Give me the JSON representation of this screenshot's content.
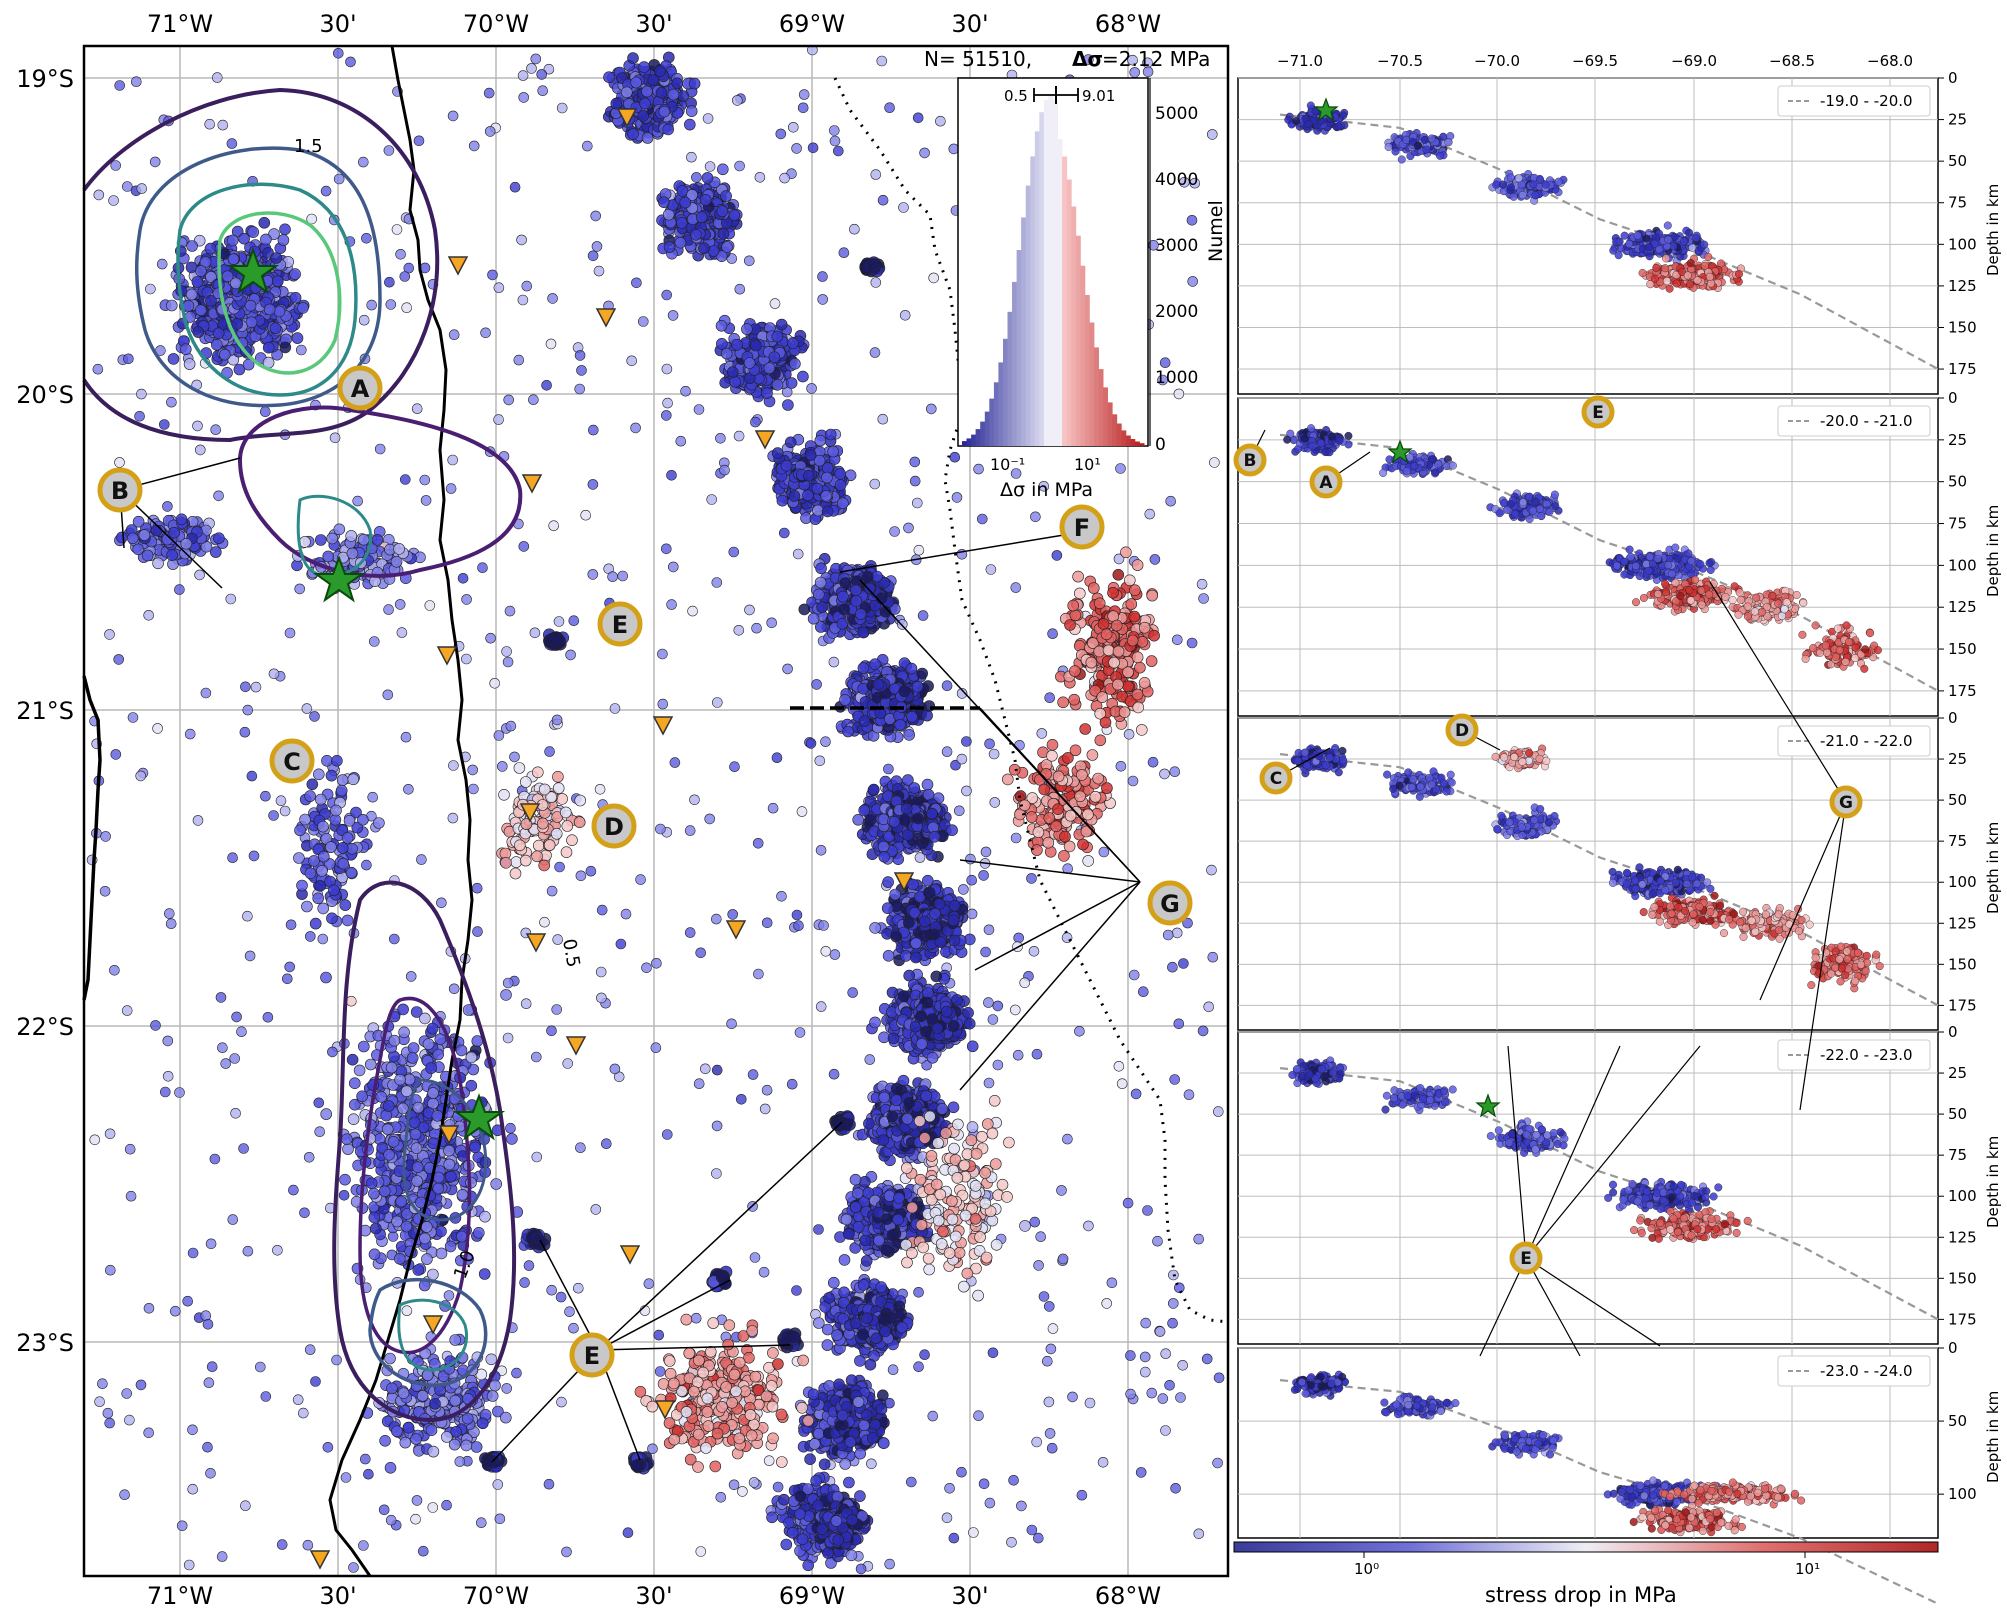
{
  "map": {
    "lon_ticks": [
      "71°W",
      "30'",
      "70°W",
      "30'",
      "69°W",
      "30'",
      "68°W"
    ],
    "lat_ticks": [
      "19°S",
      "20°S",
      "21°S",
      "22°S",
      "23°S"
    ],
    "stats_n": "N= 51510,",
    "stats_sigma": "Δσ",
    "stats_value": "=2.12 MPa",
    "contour_labels": [
      "1.5",
      "0.5",
      "1.0"
    ],
    "callouts": [
      "A",
      "B",
      "C",
      "D",
      "E",
      "F",
      "G",
      "E",
      "E"
    ]
  },
  "histogram": {
    "y_label": "Numel",
    "y_ticks": [
      "5000",
      "4000",
      "3000",
      "2000",
      "1000",
      "0"
    ],
    "x_ticks": [
      "10⁻¹",
      "10¹"
    ],
    "x_label": "Δσ in MPa",
    "range_low": "0.5",
    "range_high": "9.01"
  },
  "profiles": {
    "lon_ticks": [
      "−71.0",
      "−70.5",
      "−70.0",
      "−69.5",
      "−69.0",
      "−68.5",
      "−68.0"
    ],
    "y_label": "Depth in km",
    "panels": [
      {
        "legend": "-19.0 - -20.0",
        "depth_ticks": [
          "0",
          "25",
          "50",
          "75",
          "100",
          "125",
          "150",
          "175"
        ],
        "callouts": []
      },
      {
        "legend": "-20.0 - -21.0",
        "depth_ticks": [
          "0",
          "25",
          "50",
          "75",
          "100",
          "125",
          "150",
          "175"
        ],
        "callouts": [
          "B",
          "A",
          "E"
        ]
      },
      {
        "legend": "-21.0 - -22.0",
        "depth_ticks": [
          "0",
          "25",
          "50",
          "75",
          "100",
          "125",
          "150",
          "175"
        ],
        "callouts": [
          "C",
          "D",
          "G"
        ]
      },
      {
        "legend": "-22.0 - -23.0",
        "depth_ticks": [
          "0",
          "25",
          "50",
          "75",
          "100",
          "125",
          "150",
          "175"
        ],
        "callouts": [
          "E"
        ]
      },
      {
        "legend": "-23.0 - -24.0",
        "depth_ticks": [
          "0",
          "50",
          "100"
        ],
        "callouts": []
      }
    ]
  },
  "colorbar": {
    "label": "stress drop in MPa",
    "ticks": [
      "10⁰",
      "10¹"
    ],
    "colors": [
      "#3a3aa8",
      "#7878e0",
      "#f4f4f8",
      "#e87878",
      "#b02020"
    ]
  }
}
